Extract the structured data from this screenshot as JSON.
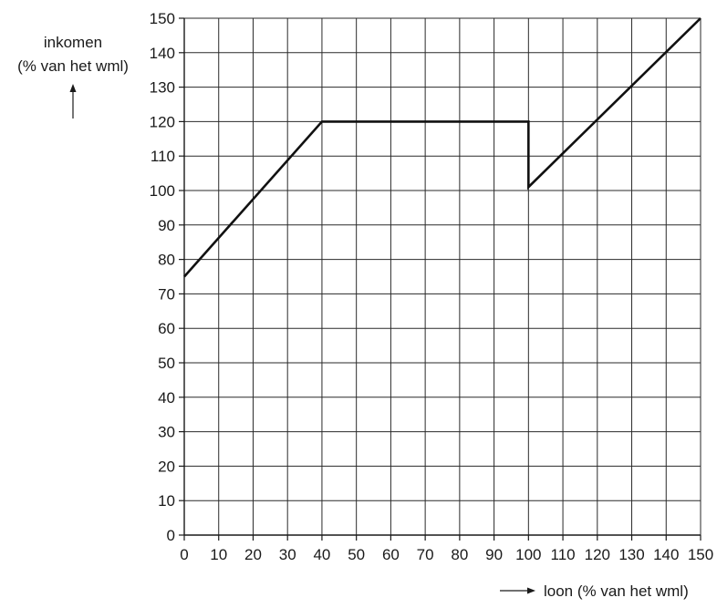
{
  "chart_data": {
    "type": "line",
    "ylabel_lines": [
      "inkomen",
      "(% van het wml)"
    ],
    "xlabel": "loon (% van het wml)",
    "xlim": [
      0,
      150
    ],
    "ylim": [
      0,
      150
    ],
    "x_ticks": [
      0,
      10,
      20,
      30,
      40,
      50,
      60,
      70,
      80,
      90,
      100,
      110,
      120,
      130,
      140,
      150
    ],
    "y_ticks": [
      0,
      10,
      20,
      30,
      40,
      50,
      60,
      70,
      80,
      90,
      100,
      110,
      120,
      130,
      140,
      150
    ],
    "grid": true,
    "series": [
      {
        "color": "#111111",
        "x": [
          0,
          40,
          100,
          100,
          150
        ],
        "y": [
          75,
          120,
          120,
          101,
          150
        ]
      }
    ]
  }
}
